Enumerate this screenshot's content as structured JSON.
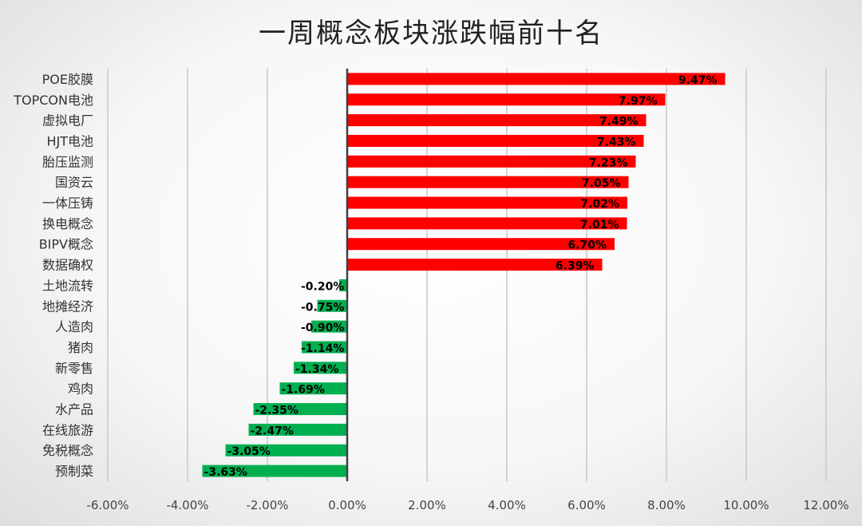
{
  "chart_data": {
    "type": "bar",
    "orientation": "horizontal",
    "title": "一周概念板块涨跌幅前十名",
    "categories": [
      "POE胶膜",
      "TOPCON电池",
      "虚拟电厂",
      "HJT电池",
      "胎压监测",
      "国资云",
      "一体压铸",
      "换电概念",
      "BIPV概念",
      "数据确权",
      "土地流转",
      "地摊经济",
      "人造肉",
      "猪肉",
      "新零售",
      "鸡肉",
      "水产品",
      "在线旅游",
      "免税概念",
      "预制菜"
    ],
    "values": [
      9.47,
      7.97,
      7.49,
      7.43,
      7.23,
      7.05,
      7.02,
      7.01,
      6.7,
      6.39,
      -0.2,
      -0.75,
      -0.9,
      -1.14,
      -1.34,
      -1.69,
      -2.35,
      -2.47,
      -3.05,
      -3.63
    ],
    "value_labels": [
      "9.47%",
      "7.97%",
      "7.49%",
      "7.43%",
      "7.23%",
      "7.05%",
      "7.02%",
      "7.01%",
      "6.70%",
      "6.39%",
      "-0.20%",
      "-0.75%",
      "-0.90%",
      "-1.14%",
      "-1.34%",
      "-1.69%",
      "-2.35%",
      "-2.47%",
      "-3.05%",
      "-3.63%"
    ],
    "xlim": [
      -6,
      12
    ],
    "x_ticks": [
      "-6.00%",
      "-4.00%",
      "-2.00%",
      "0.00%",
      "2.00%",
      "4.00%",
      "6.00%",
      "8.00%",
      "10.00%",
      "12.00%"
    ],
    "grid": true,
    "legend": "none",
    "colors": {
      "positive": "#ff0000",
      "negative": "#00b050",
      "grid": "#c8c8c8",
      "axis": "#404040"
    }
  }
}
